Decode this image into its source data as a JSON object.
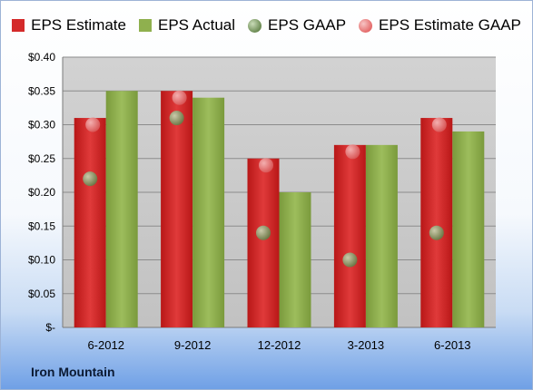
{
  "chart_data": {
    "type": "bar",
    "categories": [
      "6-2012",
      "9-2012",
      "12-2012",
      "3-2013",
      "6-2013"
    ],
    "series": [
      {
        "name": "EPS Estimate",
        "kind": "bar",
        "color": "#d42a2a",
        "values": [
          0.31,
          0.35,
          0.25,
          0.27,
          0.31
        ]
      },
      {
        "name": "EPS Actual",
        "kind": "bar",
        "color": "#8fb04e",
        "values": [
          0.35,
          0.34,
          0.2,
          0.27,
          0.29
        ]
      },
      {
        "name": "EPS GAAP",
        "kind": "point",
        "color": "#6b8a52",
        "values": [
          0.22,
          0.31,
          0.14,
          0.1,
          0.14
        ]
      },
      {
        "name": "EPS Estimate GAAP",
        "kind": "point",
        "color": "#e46a6a",
        "values": [
          0.3,
          0.34,
          0.24,
          0.26,
          0.3
        ]
      }
    ],
    "y_ticks": [
      "$-",
      "$0.05",
      "$0.10",
      "$0.15",
      "$0.20",
      "$0.25",
      "$0.30",
      "$0.35",
      "$0.40"
    ],
    "ylim": [
      0,
      0.4
    ],
    "grid": true,
    "legend_position": "top",
    "plot_background": "#c8c8c8"
  },
  "legend": {
    "items": [
      {
        "label": "EPS Estimate",
        "color": "#d42a2a",
        "shape": "square"
      },
      {
        "label": "EPS Actual",
        "color": "#8fb04e",
        "shape": "square"
      },
      {
        "label": "EPS GAAP",
        "color": "#6b8a52",
        "shape": "circle"
      },
      {
        "label": "EPS Estimate GAAP",
        "color": "#e46a6a",
        "shape": "circle"
      }
    ]
  },
  "company_name": "Iron Mountain"
}
